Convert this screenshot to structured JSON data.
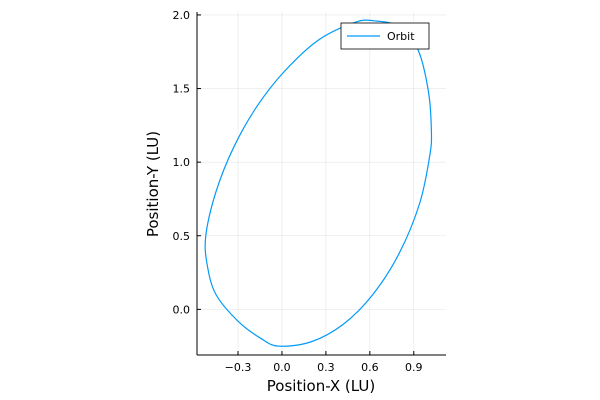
{
  "chart_data": {
    "type": "line",
    "title": "",
    "xlabel": "Position-X (LU)",
    "ylabel": "Position-Y (LU)",
    "xlim": [
      -0.58,
      1.12
    ],
    "ylim": [
      -0.31,
      2.02
    ],
    "xticks": [
      -0.3,
      0.0,
      0.3,
      0.6,
      0.9
    ],
    "xtick_labels": [
      "−0.3",
      "0.0",
      "0.3",
      "0.6",
      "0.9"
    ],
    "yticks": [
      0.0,
      0.5,
      1.0,
      1.5,
      2.0
    ],
    "ytick_labels": [
      "0.0",
      "0.5",
      "1.0",
      "1.5",
      "2.0"
    ],
    "grid": true,
    "legend_position": "top-right",
    "series": [
      {
        "name": "Orbit",
        "color": "#009af9",
        "shape": "ellipse",
        "points": [
          [
            -0.02,
            -0.25
          ],
          [
            0.2,
            -0.22
          ],
          [
            0.42,
            -0.1
          ],
          [
            0.62,
            0.1
          ],
          [
            0.8,
            0.38
          ],
          [
            0.94,
            0.72
          ],
          [
            1.01,
            1.05
          ],
          [
            1.02,
            1.22
          ],
          [
            1.0,
            1.48
          ],
          [
            0.93,
            1.76
          ],
          [
            0.8,
            1.92
          ],
          [
            0.63,
            1.96
          ],
          [
            0.5,
            1.95
          ],
          [
            0.25,
            1.83
          ],
          [
            0.02,
            1.62
          ],
          [
            -0.17,
            1.38
          ],
          [
            -0.33,
            1.1
          ],
          [
            -0.45,
            0.8
          ],
          [
            -0.52,
            0.5
          ],
          [
            -0.51,
            0.3
          ],
          [
            -0.45,
            0.1
          ],
          [
            -0.3,
            -0.08
          ],
          [
            -0.14,
            -0.2
          ],
          [
            -0.02,
            -0.25
          ]
        ]
      }
    ]
  }
}
